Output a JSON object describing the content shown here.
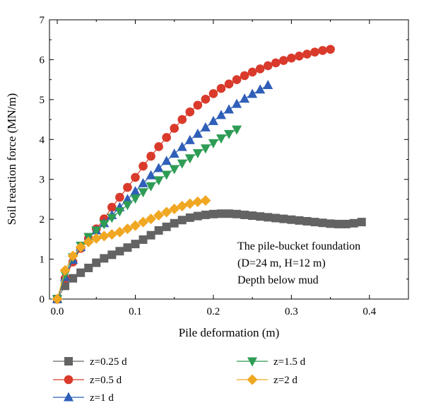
{
  "chart_data": {
    "type": "scatter",
    "title": "",
    "xlabel": "Pile deformation (m)",
    "ylabel": "Soil reaction force (MN/m)",
    "xlim": [
      -0.01,
      0.45
    ],
    "ylim": [
      0,
      7
    ],
    "xticks": [
      "0.0",
      "0.1",
      "0.2",
      "0.3",
      "0.4"
    ],
    "yticks": [
      "0",
      "1",
      "2",
      "3",
      "4",
      "5",
      "6",
      "7"
    ],
    "grid": false,
    "legend_position": "bottom",
    "annotation": [
      "The pile-bucket foundation",
      "(D=24 m, H=12 m)",
      "Depth below mud"
    ],
    "series": [
      {
        "name": "z=0.25 d",
        "color": "#636363",
        "marker": "square",
        "x": [
          0.0,
          0.01,
          0.02,
          0.03,
          0.04,
          0.05,
          0.06,
          0.07,
          0.08,
          0.09,
          0.1,
          0.11,
          0.12,
          0.13,
          0.14,
          0.15,
          0.16,
          0.17,
          0.18,
          0.19,
          0.2,
          0.21,
          0.22,
          0.23,
          0.24,
          0.25,
          0.26,
          0.27,
          0.28,
          0.29,
          0.3,
          0.31,
          0.32,
          0.33,
          0.34,
          0.35,
          0.36,
          0.37,
          0.38,
          0.39
        ],
        "y": [
          0.0,
          0.33,
          0.52,
          0.66,
          0.78,
          0.91,
          1.02,
          1.11,
          1.2,
          1.29,
          1.38,
          1.49,
          1.6,
          1.72,
          1.81,
          1.9,
          1.98,
          2.04,
          2.08,
          2.11,
          2.13,
          2.14,
          2.14,
          2.13,
          2.11,
          2.09,
          2.07,
          2.05,
          2.03,
          2.01,
          1.99,
          1.97,
          1.95,
          1.93,
          1.91,
          1.89,
          1.88,
          1.88,
          1.9,
          1.93
        ]
      },
      {
        "name": "z=0.5 d",
        "color": "#d93a2b",
        "marker": "circle",
        "x": [
          0.0,
          0.01,
          0.02,
          0.03,
          0.04,
          0.05,
          0.06,
          0.07,
          0.08,
          0.09,
          0.1,
          0.11,
          0.12,
          0.13,
          0.14,
          0.15,
          0.16,
          0.17,
          0.18,
          0.19,
          0.2,
          0.21,
          0.22,
          0.23,
          0.24,
          0.25,
          0.26,
          0.27,
          0.28,
          0.29,
          0.3,
          0.31,
          0.32,
          0.33,
          0.34,
          0.35
        ],
        "y": [
          0.0,
          0.52,
          0.93,
          1.27,
          1.52,
          1.76,
          2.01,
          2.3,
          2.55,
          2.8,
          3.05,
          3.33,
          3.58,
          3.82,
          4.05,
          4.28,
          4.5,
          4.69,
          4.86,
          5.01,
          5.15,
          5.28,
          5.39,
          5.5,
          5.6,
          5.69,
          5.77,
          5.85,
          5.92,
          5.98,
          6.04,
          6.09,
          6.14,
          6.19,
          6.23,
          6.26
        ]
      },
      {
        "name": "z=1 d",
        "color": "#2f5fb8",
        "marker": "triangle-up",
        "x": [
          0.0,
          0.01,
          0.02,
          0.03,
          0.04,
          0.05,
          0.06,
          0.07,
          0.08,
          0.09,
          0.1,
          0.11,
          0.12,
          0.13,
          0.14,
          0.15,
          0.16,
          0.17,
          0.18,
          0.19,
          0.2,
          0.21,
          0.22,
          0.23,
          0.24,
          0.25,
          0.26,
          0.27
        ],
        "y": [
          0.0,
          0.55,
          0.98,
          1.3,
          1.52,
          1.72,
          1.9,
          2.1,
          2.3,
          2.5,
          2.7,
          2.9,
          3.1,
          3.28,
          3.46,
          3.64,
          3.81,
          3.98,
          4.14,
          4.3,
          4.46,
          4.61,
          4.75,
          4.89,
          5.02,
          5.14,
          5.25,
          5.36
        ]
      },
      {
        "name": "z=1.5 d",
        "color": "#2e9c55",
        "marker": "triangle-down",
        "x": [
          0.0,
          0.01,
          0.02,
          0.03,
          0.04,
          0.05,
          0.06,
          0.07,
          0.08,
          0.09,
          0.1,
          0.11,
          0.12,
          0.13,
          0.14,
          0.15,
          0.16,
          0.17,
          0.18,
          0.19,
          0.2,
          0.21,
          0.22,
          0.23
        ],
        "y": [
          0.0,
          0.62,
          1.05,
          1.34,
          1.56,
          1.72,
          1.88,
          2.04,
          2.2,
          2.36,
          2.52,
          2.68,
          2.83,
          2.98,
          3.12,
          3.26,
          3.4,
          3.53,
          3.66,
          3.78,
          3.91,
          4.03,
          4.14,
          4.25
        ]
      },
      {
        "name": "z=2 d",
        "color": "#f0a722",
        "marker": "diamond",
        "x": [
          0.0,
          0.01,
          0.02,
          0.03,
          0.04,
          0.05,
          0.06,
          0.07,
          0.08,
          0.09,
          0.1,
          0.11,
          0.12,
          0.13,
          0.14,
          0.15,
          0.16,
          0.17,
          0.18,
          0.19
        ],
        "y": [
          0.0,
          0.72,
          1.08,
          1.3,
          1.43,
          1.52,
          1.58,
          1.62,
          1.68,
          1.76,
          1.84,
          1.93,
          2.01,
          2.1,
          2.18,
          2.26,
          2.33,
          2.39,
          2.44,
          2.47
        ]
      }
    ]
  }
}
